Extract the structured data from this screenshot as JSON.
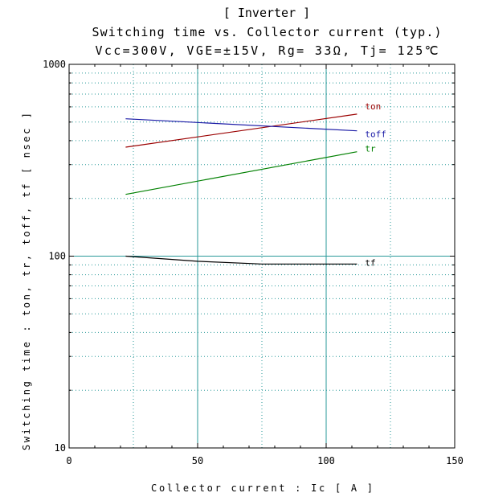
{
  "chart_data": {
    "type": "line",
    "title": "[ Inverter ]",
    "subtitle": "Switching time vs. Collector current (typ.)",
    "conditions": "Vcc=300V, VGE=±15V, Rg= 33Ω, Tj= 125℃",
    "xlabel": "Collector current : Ic [ A ]",
    "ylabel": "Switching time : ton, tr, toff, tf [ nsec ]",
    "xlim": [
      0,
      150
    ],
    "ylim": [
      10,
      1000
    ],
    "yscale": "log",
    "grid": true,
    "x_ticks": [
      0,
      50,
      100,
      150
    ],
    "x_tick_labels": [
      "0",
      "50",
      "100",
      "150"
    ],
    "y_ticks": [
      10,
      100,
      1000
    ],
    "y_tick_labels": [
      "10",
      "100",
      "1000"
    ],
    "series": [
      {
        "name": "ton",
        "color": "#9b0000",
        "x": [
          22,
          112
        ],
        "y": [
          370,
          550
        ]
      },
      {
        "name": "toff",
        "color": "#1a1aa6",
        "x": [
          22,
          112
        ],
        "y": [
          520,
          450
        ]
      },
      {
        "name": "tr",
        "color": "#008000",
        "x": [
          22,
          112
        ],
        "y": [
          210,
          350
        ]
      },
      {
        "name": "tf",
        "color": "#000000",
        "x": [
          22,
          50,
          75,
          112
        ],
        "y": [
          100,
          94,
          91,
          91
        ]
      }
    ]
  }
}
